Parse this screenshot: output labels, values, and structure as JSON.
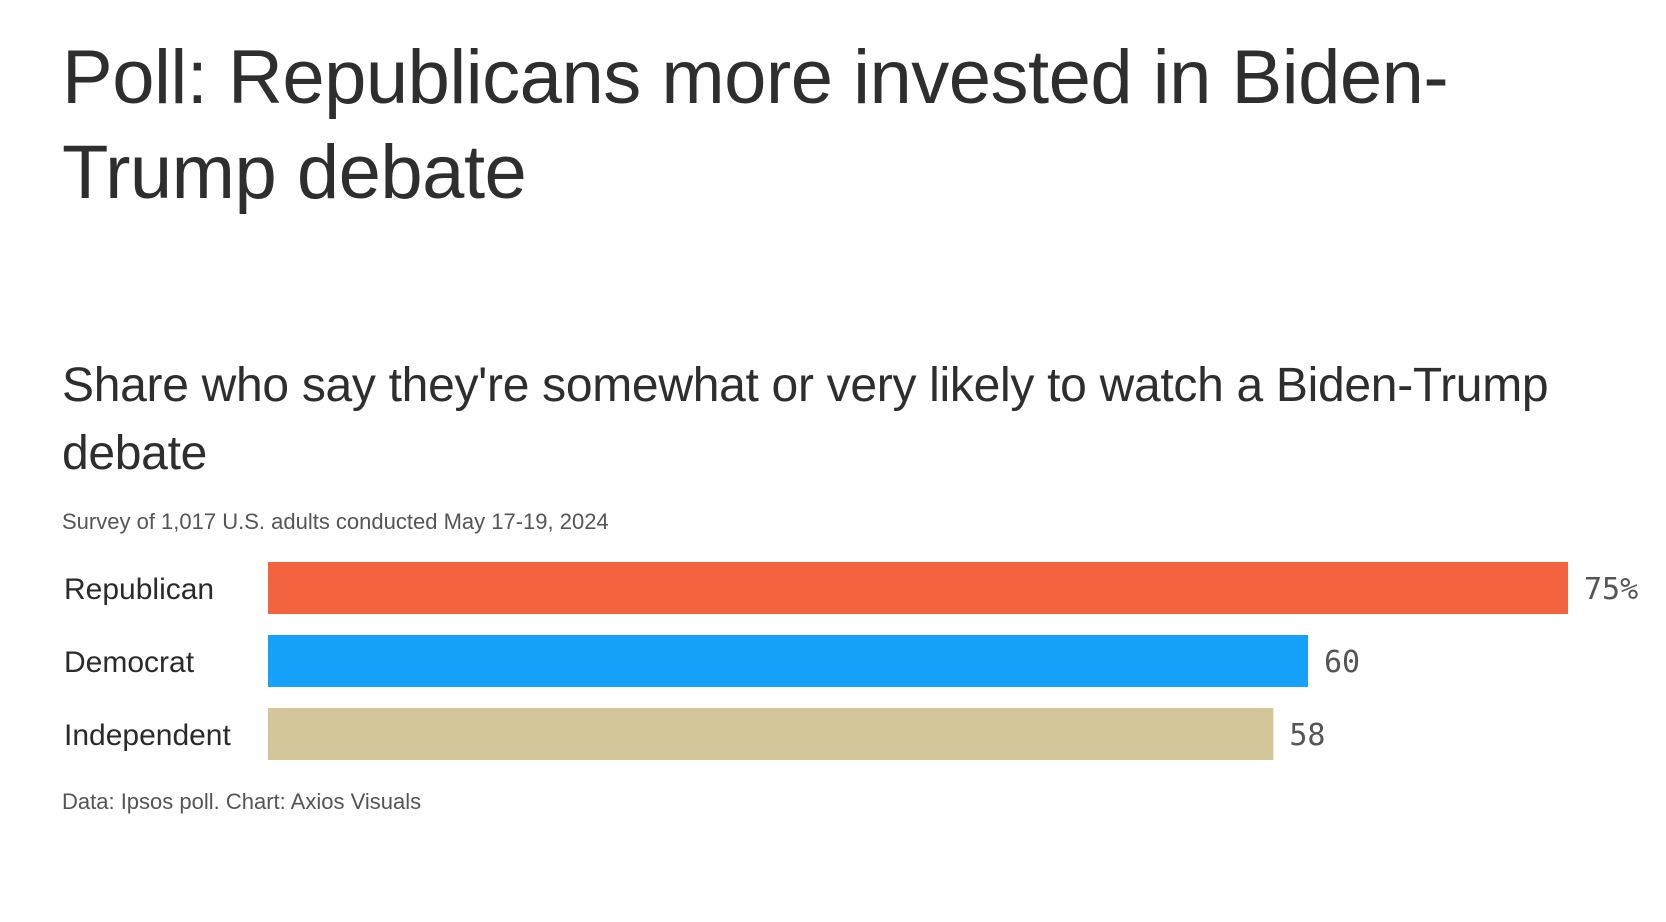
{
  "headline": "Poll: Republicans more invested in Biden-Trump debate",
  "chart_title": "Share who say they're somewhat or very likely to watch a Biden-Trump debate",
  "subtitle": "Survey of 1,017 U.S. adults conducted May 17-19, 2024",
  "source": "Data: Ipsos poll. Chart: Axios Visuals",
  "chart_data": {
    "type": "bar",
    "orientation": "horizontal",
    "categories": [
      "Republican",
      "Democrat",
      "Independent"
    ],
    "values": [
      75,
      60,
      58
    ],
    "value_labels": [
      "75%",
      "60",
      "58"
    ],
    "colors": [
      "#f4633f",
      "#16a1fb",
      "#d3c699"
    ],
    "unit": "%",
    "xlim": [
      0,
      75
    ],
    "grid": false,
    "legend": "none"
  }
}
